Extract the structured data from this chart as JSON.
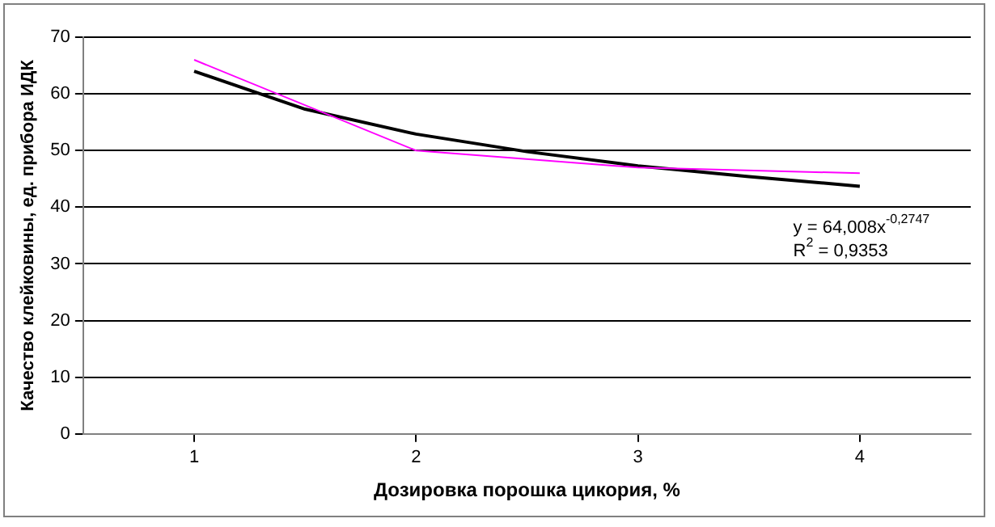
{
  "chart_data": {
    "type": "line",
    "xlabel": "Дозировка порошка цикория, %",
    "ylabel": "Качество клейковины, ед. прибора ИДК",
    "x": [
      1,
      2,
      3,
      4
    ],
    "series": [
      {
        "color": "#ff00ff",
        "values": [
          66,
          50,
          47,
          46
        ]
      },
      {
        "type": "line",
        "color": "#000000",
        "x": [
          1,
          1.5,
          2,
          2.5,
          3,
          3.5,
          4
        ],
        "values": [
          64.0,
          57.3,
          52.9,
          49.8,
          47.3,
          45.4,
          43.7
        ]
      }
    ],
    "xlim": [
      0.5,
      4.5
    ],
    "xticks": [
      1,
      2,
      3,
      4
    ],
    "ylim": [
      0,
      70
    ],
    "yticks": [
      0,
      10,
      20,
      30,
      40,
      50,
      60,
      70
    ],
    "grid": "y",
    "legend": false,
    "marker": "none",
    "line_style": "solid",
    "annotations": [
      "y = 64,008x$^{-0,2747}$",
      "R$^{2}$ = 0,9353"
    ]
  }
}
